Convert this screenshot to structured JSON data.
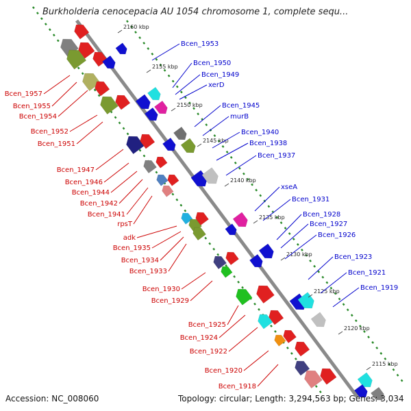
{
  "title": "Burkholderia cenocepacia AU 1054 chromosome 1, complete sequ...",
  "footer": {
    "accession": "Accession: NC_008060",
    "topology": "Topology: circular; Length: 3,294,563 bp; Genes: 3,034"
  },
  "colors": {
    "forward_label": "#0000cc",
    "reverse_label": "#cc0000",
    "backbone": "#888888",
    "dotted_track": "#2a8a2a"
  },
  "kbp_ticks": [
    "2160 kbp",
    "2155 kbp",
    "2150 kbp",
    "2145 kbp",
    "2140 kbp",
    "2135 kbp",
    "2130 kbp",
    "2125 kbp",
    "2120 kbp",
    "2115 kbp"
  ],
  "forward_labels": [
    "Bcen_1953",
    "Bcen_1950",
    "Bcen_1949",
    "xerD",
    "Bcen_1945",
    "murB",
    "Bcen_1940",
    "Bcen_1938",
    "Bcen_1937",
    "xseA",
    "Bcen_1931",
    "Bcen_1928",
    "Bcen_1927",
    "Bcen_1926",
    "Bcen_1923",
    "Bcen_1921",
    "Bcen_1919"
  ],
  "reverse_labels": [
    "Bcen_1957",
    "Bcen_1955",
    "Bcen_1954",
    "Bcen_1952",
    "Bcen_1951",
    "Bcen_1947",
    "Bcen_1946",
    "Bcen_1944",
    "Bcen_1942",
    "Bcen_1941",
    "rpsT",
    "adk",
    "Bcen_1935",
    "Bcen_1934",
    "Bcen_1933",
    "Bcen_1930",
    "Bcen_1929",
    "Bcen_1925",
    "Bcen_1924",
    "Bcen_1922",
    "Bcen_1920",
    "Bcen_1918"
  ]
}
